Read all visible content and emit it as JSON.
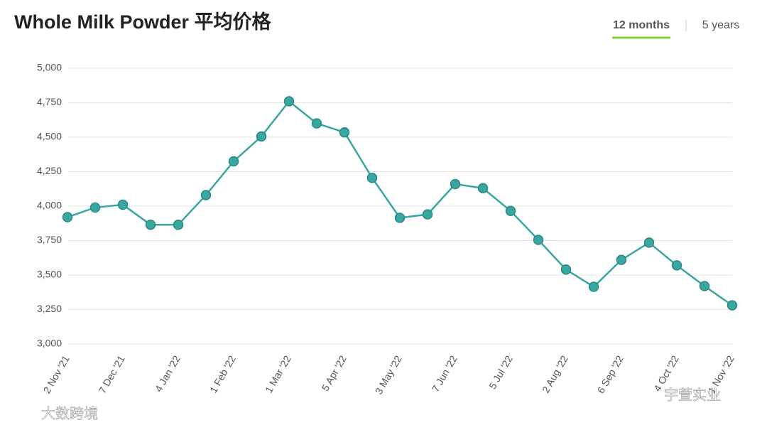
{
  "chart_data": {
    "type": "line",
    "title": "Whole Milk Powder 平均价格",
    "categories": [
      "2 Nov '21",
      null,
      "7 Dec '21",
      null,
      "4 Jan '22",
      null,
      "1 Feb '22",
      null,
      "1 Mar '22",
      null,
      "5 Apr '22",
      null,
      "3 May '22",
      null,
      "7 Jun '22",
      null,
      "5 Jul '22",
      null,
      "2 Aug '22",
      null,
      "6 Sep '22",
      null,
      "4 Oct '22",
      null,
      "1 Nov '22"
    ],
    "series": [
      {
        "name": "Whole Milk Powder",
        "color": "#3aa6a0",
        "values": [
          3920,
          3990,
          4010,
          3865,
          3865,
          4080,
          4325,
          4505,
          4760,
          4600,
          4535,
          4205,
          3915,
          3940,
          4160,
          4130,
          3965,
          3755,
          3540,
          3415,
          3610,
          3735,
          3570,
          3420,
          3280
        ]
      }
    ],
    "ylim": [
      3000,
      5000
    ],
    "yticks": [
      {
        "value": 3000,
        "label": "3,000"
      },
      {
        "value": 3250,
        "label": "3,250"
      },
      {
        "value": 3500,
        "label": "3,500"
      },
      {
        "value": 3750,
        "label": "3,750"
      },
      {
        "value": 4000,
        "label": "4,000"
      },
      {
        "value": 4250,
        "label": "4,250"
      },
      {
        "value": 4500,
        "label": "4,500"
      },
      {
        "value": 4750,
        "label": "4,750"
      },
      {
        "value": 5000,
        "label": "5,000"
      }
    ],
    "grid": true
  },
  "toggle": {
    "options": [
      "12 months",
      "5 years"
    ],
    "active": 0
  },
  "watermarks": [
    "大数跨境",
    "宇萱实业"
  ]
}
